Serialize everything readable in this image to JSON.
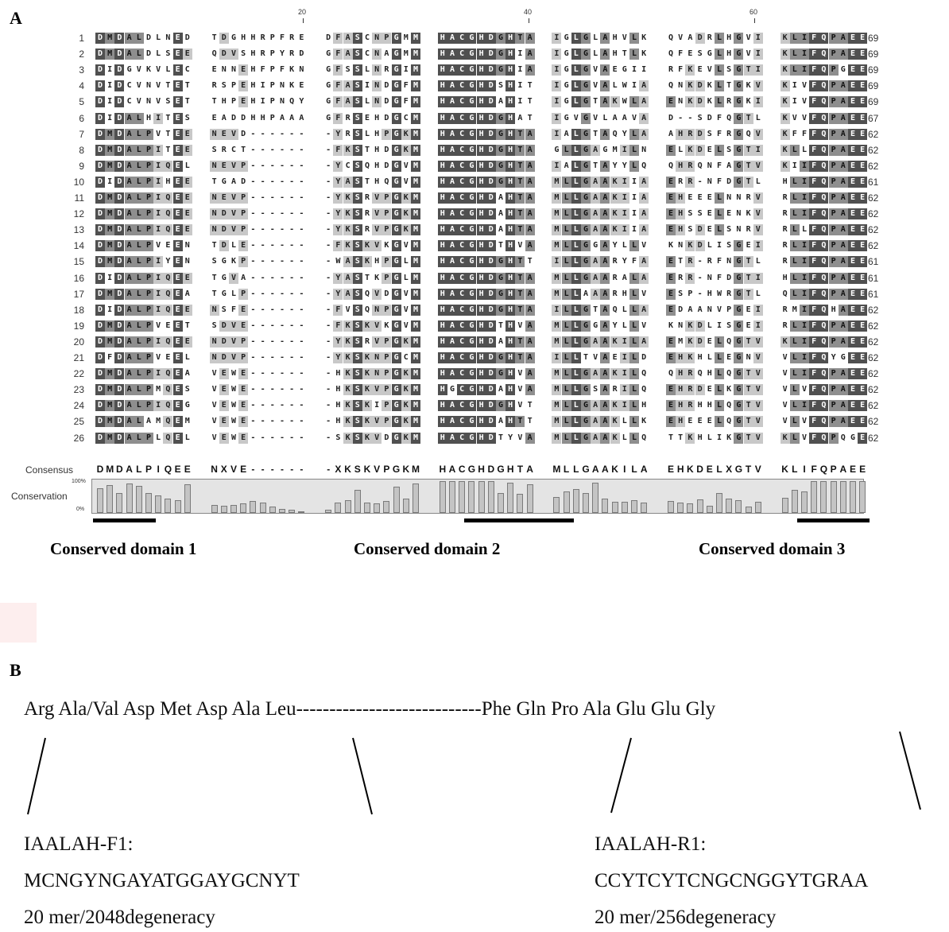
{
  "panel_a_label": "A",
  "panel_b_label": "B",
  "ruler": [
    "20",
    "40",
    "60"
  ],
  "sequences": [
    {
      "idx": "1",
      "seq": "DMDALDLNED TDGHHRPFRE DFASCNPGMM HACGHDGHTA IGLGLAHVLK QVADRLHGVI KLIFQPAEE",
      "count": "69"
    },
    {
      "idx": "2",
      "seq": "DMDALDLSEE QDVSHRPYRD GFASCNAGMM HACGHDGHIA IGLGLAHTLK QFESGLHGVI KLIFQPAEE",
      "count": "69"
    },
    {
      "idx": "3",
      "seq": "DIDGVKVLEC ENNEHFPFKN GFSSLNRGIM HACGHDGHIA IGLGVAEGII RFKEVLSGTI KLIFQPGEE",
      "count": "69"
    },
    {
      "idx": "4",
      "seq": "DIDCVNVTET RSPEHIPNKE GFASINDGFM HACGHDSHIT IGLGVALWIA QNKDKLTGKV KIVFQPAEE",
      "count": "69"
    },
    {
      "idx": "5",
      "seq": "DIDCVNVSET THPEHIPNQY GFASLNDGFM HACGHDAHIT IGLGTAKWLA ENKDKLRGKI KIVFQPAEE",
      "count": "69"
    },
    {
      "idx": "6",
      "seq": "DIDALHITES EADDHHPAAA GFRSEHDGCM HACGHDGHAT IGVGVLAAVA D--SDFQGTL KVVFQPAEE",
      "count": "67"
    },
    {
      "idx": "7",
      "seq": "DMDALPVTEE NEVD------ -YRSLHPGKM HACGHDGHTA IALGTAQYLA AHRDSFRGQV KFFFQPAEE",
      "count": "62"
    },
    {
      "idx": "8",
      "seq": "DMDALPITEE SRCT------ -FKSTHDGKM HACGHDGHTA GLLGAGMILN ELKDELSGTI KLLFQPAEE",
      "count": "62"
    },
    {
      "idx": "9",
      "seq": "DMDALPIQEL NEVP------ -YCSQHDGVM HACGHDGHTA IALGTAYYLQ QHRQNFAGTV KIIFQPAEE",
      "count": "62"
    },
    {
      "idx": "10",
      "seq": "DIDALPIHEE TGAD------ -YASTHQGVM HACGHDGHTA MLLGAAKIIA ERR-NFDGTL HLIFQPAEE",
      "count": "61"
    },
    {
      "idx": "11",
      "seq": "DMDALPIQEE NEVP------ -YKSRVPGKM HACGHDAHTA MLLGAAKIIA EHEEELNNRV RLIFQPAEE",
      "count": "62"
    },
    {
      "idx": "12",
      "seq": "DMDALPIQEE NDVP------ -YKSRVPGKM HACGHDAHTA MLLGAAKIIA EHSSELENKV RLIFQPAEE",
      "count": "62"
    },
    {
      "idx": "13",
      "seq": "DMDALPIQEE NDVP------ -YKSRVPGKM HACGHDAHTA MLLGAAKIIA EHSDELSNRV RLLFQPAEE",
      "count": "62"
    },
    {
      "idx": "14",
      "seq": "DMDALPVEEN TDLE------ -FKSKVKGVM HACGHDTHVA MLLGGAYLLV KNKDLISGEI RLIFQPAEE",
      "count": "62"
    },
    {
      "idx": "15",
      "seq": "DMDALPIYEN SGKP------ -WASKHPGLM HACGHDGHTT ILLGAARYFA ETR-RFNGTL RLIFQPAEE",
      "count": "61"
    },
    {
      "idx": "16",
      "seq": "DIDALPIQEE TGVA------ -YASTKPGLM HACGHDGHTA MLLGAARALA ERR-NFDGTI HLIFQPAEE",
      "count": "61"
    },
    {
      "idx": "17",
      "seq": "DMDALPIQEA TGLP------ -YASQVDGVM HACGHDGHTA MLLAAARHLV ESP-HWRGTL QLIFQPAEE",
      "count": "61"
    },
    {
      "idx": "18",
      "seq": "DIDALPIQEE NSFE------ -FVSQNPGVM HACGHDGHTA ILLGTAQLLA EDAANVPGEI RMIFQHAEE",
      "count": "62"
    },
    {
      "idx": "19",
      "seq": "DMDALPVEET SDVE------ -FKSKVKGVM HACGHDTHVA MLLGGAYLLV KNKDLISGEI RLIFQPAEE",
      "count": "62"
    },
    {
      "idx": "20",
      "seq": "DMDALPIQEE NDVP------ -YKSRVPGKM HACGHDAHTA MLLGAAKILA EMKDELQGTV KLIFQPAEE",
      "count": "62"
    },
    {
      "idx": "21",
      "seq": "DFDALPVEEL NDVP------ -YKSKNPGCM HACGHDGHTA ILLTVAEILD EHKHLLEGNV VLIFQYGEE",
      "count": "62"
    },
    {
      "idx": "22",
      "seq": "DMDALPIQEA VEWE------ -HKSKNPGKM HACGHDGHVA MLLGAAKILQ QHRQHLQGTV VLIFQPAEE",
      "count": "62"
    },
    {
      "idx": "23",
      "seq": "DMDALPMQES VEWE------ -HKSKVPGKM HGCGHDAHVA MLLGSARILQ EHRDELKGTV VLVFQPAEE",
      "count": "62"
    },
    {
      "idx": "24",
      "seq": "DMDALPIQEG VEWE------ -HKSKIPGKM HACGHDGHVT MLLGAAKILH EHRHHLQGTV VLIFQPAEE",
      "count": "62"
    },
    {
      "idx": "25",
      "seq": "DMDALAMQEM VEWE------ -HKSKVPGKM HACGHDAHTT MLLGAAKLLK EHEEELQGTV VLVFQPAEE",
      "count": "62"
    },
    {
      "idx": "26",
      "seq": "DMDALPLQEL VEWE------ -SKSKVDGKM HACGHDTYVA MLLGAAKLLQ TTKHLIKGTV KLVFQPQGE",
      "count": "62"
    }
  ],
  "consensus_label": "Consensus",
  "consensus": "DMDALPIQEE NXVE------ -XKSKVPGKM HACGHDGHTA MLLGAAKILA EHKDELXGTV KLIFQPAEE",
  "conservation_label": "Conservation",
  "conservation_scale": {
    "top": "100%",
    "bottom": "0%"
  },
  "conservation": [
    0.78,
    0.88,
    0.62,
    0.93,
    0.86,
    0.62,
    0.55,
    0.46,
    0.41,
    0.9,
    0.26,
    0.22,
    0.26,
    0.3,
    0.38,
    0.33,
    0.2,
    0.12,
    0.1,
    0.06,
    0.1,
    0.32,
    0.4,
    0.72,
    0.32,
    0.3,
    0.38,
    0.82,
    0.45,
    0.92,
    1,
    1,
    1,
    1,
    1,
    1,
    0.62,
    0.95,
    0.6,
    0.9,
    0.5,
    0.68,
    0.75,
    0.62,
    0.95,
    0.45,
    0.35,
    0.35,
    0.4,
    0.33,
    0.38,
    0.32,
    0.3,
    0.42,
    0.22,
    0.62,
    0.45,
    0.4,
    0.2,
    0.34,
    0.48,
    0.72,
    0.68,
    1,
    1,
    1,
    1,
    1,
    1
  ],
  "domains": [
    {
      "label": "Conserved domain 1",
      "start": 1,
      "end": 6
    },
    {
      "label": "Conserved domain 2",
      "start": 34,
      "end": 42
    },
    {
      "label": "Conserved domain 3",
      "start": 63,
      "end": 69
    }
  ],
  "panel_b": {
    "peptide_left": "Arg Ala/Val Asp Met Asp Ala Leu",
    "dashes": "----------------------------",
    "peptide_right": "Phe Gln Pro Ala Glu Glu Gly",
    "primer_f_name": "IAALAH-F1:",
    "primer_f_seq": "MCNGYNGAYATGGAYGCNYT",
    "primer_f_info": "20 mer/2048degeneracy",
    "primer_r_name": "IAALAH-R1:",
    "primer_r_seq": "CCYTCYTCNGCNGGYTGRAA",
    "primer_r_info": "20 mer/256degeneracy"
  },
  "colors": {
    "level1": "#c8c8c8",
    "level2": "#8e8e8e",
    "level3": "#505050"
  }
}
